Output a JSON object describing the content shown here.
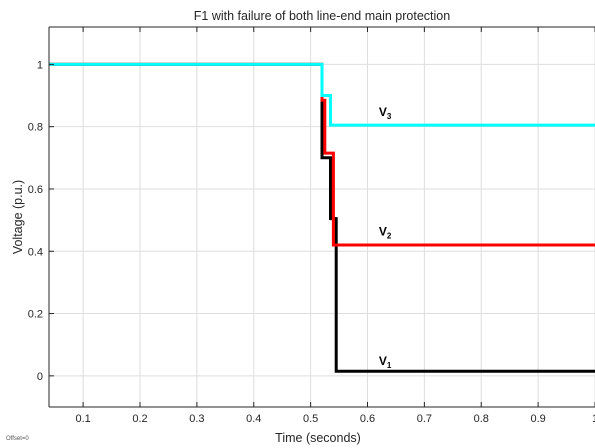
{
  "chart_data": {
    "type": "line",
    "title": "F1 with failure of both line-end main protection",
    "xlabel": "Time (seconds)",
    "ylabel": "Voltage (p.u.)",
    "xlim": [
      0.04,
      1.0
    ],
    "ylim": [
      -0.1,
      1.12
    ],
    "xticks": [
      0.1,
      0.2,
      0.3,
      0.4,
      0.5,
      0.6,
      0.7,
      0.8,
      0.9,
      1.0
    ],
    "xtick_labels": [
      "0.1",
      "0.2",
      "0.3",
      "0.4",
      "0.5",
      "0.6",
      "0.7",
      "0.8",
      "0.9",
      "1"
    ],
    "yticks": [
      0,
      0.2,
      0.4,
      0.6,
      0.8,
      1.0
    ],
    "ytick_labels": [
      "0",
      "0.2",
      "0.4",
      "0.6",
      "0.8",
      "1"
    ],
    "grid": true,
    "footnote": "Offset=0",
    "series": [
      {
        "name": "V",
        "subscript": "1",
        "color": "#000000",
        "label_at": [
          0.62,
          0.035
        ],
        "x": [
          0.04,
          0.52,
          0.52,
          0.535,
          0.535,
          0.545,
          0.545,
          1.0
        ],
        "y": [
          1.0,
          1.0,
          0.7,
          0.7,
          0.505,
          0.505,
          0.015,
          0.015
        ]
      },
      {
        "name": "V",
        "subscript": "2",
        "color": "#ff0000",
        "label_at": [
          0.62,
          0.45
        ],
        "x": [
          0.04,
          0.52,
          0.52,
          0.525,
          0.525,
          0.54,
          0.54,
          1.0
        ],
        "y": [
          1.0,
          1.0,
          0.885,
          0.885,
          0.715,
          0.715,
          0.42,
          0.42
        ]
      },
      {
        "name": "V",
        "subscript": "3",
        "color": "#00ffff",
        "label_at": [
          0.62,
          0.835
        ],
        "x": [
          0.04,
          0.52,
          0.52,
          0.535,
          0.535,
          0.545,
          0.545,
          1.0
        ],
        "y": [
          1.0,
          1.0,
          0.9,
          0.9,
          0.805,
          0.805,
          0.805,
          0.805
        ]
      }
    ]
  }
}
